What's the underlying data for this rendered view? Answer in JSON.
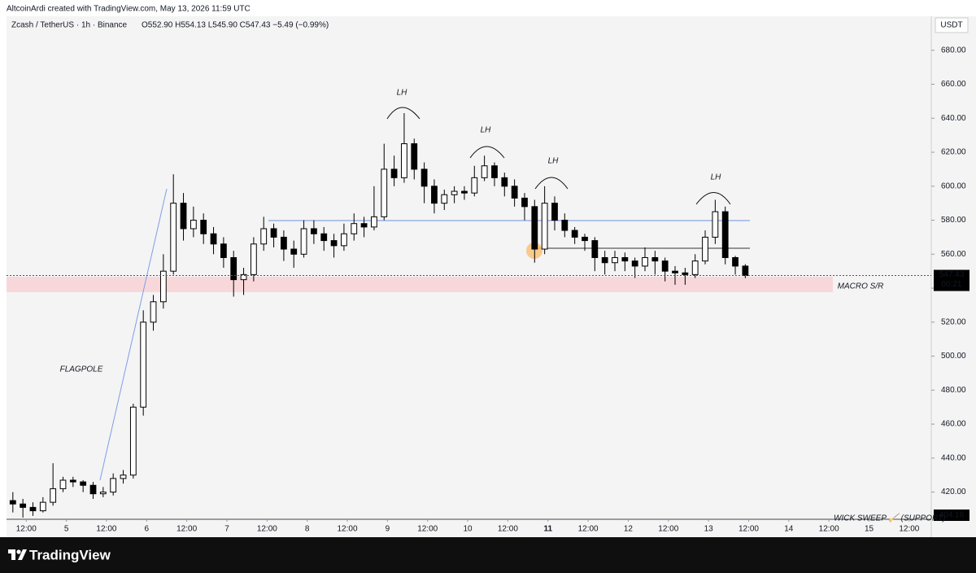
{
  "header": {
    "credit": "AltcoinArdi created with TradingView.com, May 13, 2026 11:59 UTC"
  },
  "chart_data": {
    "type": "candlestick",
    "symbol": "Zcash / TetherUS · 1h · Binance",
    "ohlc_summary": "O552.90 H554.13 L545.90 C547.43 −5.49 (−0.99%)",
    "currency": "USDT",
    "x": [
      8,
      11,
      14,
      17,
      20,
      23,
      26,
      29,
      32,
      35,
      38,
      41,
      44,
      47,
      50,
      53,
      56,
      59,
      62,
      65,
      68,
      71,
      74,
      77,
      80,
      83,
      86,
      89,
      92,
      95,
      98,
      101,
      104,
      107,
      110,
      113,
      116,
      119,
      122,
      125,
      128,
      131,
      134,
      137,
      140,
      143,
      146,
      149,
      152,
      155,
      158,
      161,
      164,
      167,
      170,
      173,
      176,
      179,
      182,
      185,
      188,
      191,
      194,
      197,
      200,
      203,
      206,
      209,
      212,
      215,
      218,
      221,
      224,
      227
    ],
    "open": [
      415,
      413,
      411,
      409,
      414,
      422,
      427,
      426,
      424,
      419,
      420,
      428,
      430,
      470,
      520,
      532,
      550,
      590,
      575,
      580,
      572,
      566,
      558,
      545,
      548,
      566,
      575,
      570,
      563,
      560,
      575,
      572,
      568,
      565,
      572,
      578,
      576,
      582,
      610,
      605,
      625,
      610,
      600,
      590,
      595,
      597,
      596,
      605,
      612,
      605,
      600,
      593,
      588,
      563,
      590,
      580,
      574,
      570,
      568,
      558,
      555,
      558,
      556,
      553,
      558,
      556,
      550,
      549,
      548,
      556,
      570,
      585,
      558,
      553
    ],
    "high": [
      420,
      416,
      414,
      417,
      437,
      429,
      429,
      427,
      426,
      423,
      431,
      433,
      472,
      527,
      536,
      560,
      607,
      596,
      588,
      584,
      576,
      570,
      562,
      552,
      570,
      582,
      578,
      574,
      568,
      580,
      580,
      576,
      572,
      578,
      584,
      582,
      600,
      625,
      618,
      643,
      628,
      614,
      604,
      598,
      600,
      600,
      612,
      618,
      614,
      608,
      604,
      596,
      592,
      600,
      594,
      584,
      576,
      572,
      570,
      562,
      562,
      561,
      558,
      564,
      562,
      558,
      553,
      552,
      560,
      574,
      592,
      588,
      559,
      554.13
    ],
    "low": [
      408,
      405,
      406,
      408,
      412,
      420,
      423,
      420,
      416,
      417,
      418,
      425,
      428,
      465,
      515,
      528,
      548,
      568,
      570,
      566,
      560,
      552,
      535,
      536,
      544,
      562,
      564,
      556,
      552,
      558,
      566,
      562,
      558,
      562,
      568,
      570,
      574,
      580,
      600,
      602,
      604,
      590,
      584,
      586,
      590,
      592,
      594,
      603,
      600,
      594,
      588,
      580,
      555,
      560,
      574,
      570,
      566,
      562,
      550,
      548,
      550,
      550,
      546,
      550,
      548,
      544,
      542,
      542,
      546,
      554,
      566,
      554,
      548,
      545.9
    ],
    "close": [
      413,
      411,
      409,
      414,
      422,
      427,
      426,
      424,
      419,
      420,
      428,
      430,
      470,
      520,
      532,
      550,
      590,
      575,
      580,
      572,
      566,
      558,
      545,
      548,
      566,
      575,
      570,
      563,
      560,
      575,
      572,
      568,
      565,
      572,
      578,
      576,
      582,
      610,
      605,
      625,
      610,
      600,
      590,
      595,
      597,
      596,
      605,
      612,
      605,
      600,
      593,
      588,
      563,
      590,
      580,
      574,
      570,
      568,
      558,
      555,
      558,
      556,
      553,
      558,
      556,
      550,
      549,
      548,
      556,
      570,
      585,
      558,
      553,
      547.43
    ],
    "up_color": "#ffffff",
    "down_color": "#000000",
    "xlim": [
      6.1,
      282.6
    ],
    "xticks": [
      {
        "value": 12,
        "label": "12:00"
      },
      {
        "value": 24,
        "label": "5"
      },
      {
        "value": 36,
        "label": "12:00"
      },
      {
        "value": 48,
        "label": "6"
      },
      {
        "value": 60,
        "label": "12:00"
      },
      {
        "value": 72,
        "label": "7"
      },
      {
        "value": 84,
        "label": "12:00"
      },
      {
        "value": 96,
        "label": "8"
      },
      {
        "value": 108,
        "label": "12:00"
      },
      {
        "value": 120,
        "label": "9"
      },
      {
        "value": 132,
        "label": "12:00"
      },
      {
        "value": 144,
        "label": "10"
      },
      {
        "value": 156,
        "label": "12:00"
      },
      {
        "value": 168,
        "label": "11"
      },
      {
        "value": 180,
        "label": "12:00"
      },
      {
        "value": 192,
        "label": "12"
      },
      {
        "value": 204,
        "label": "12:00"
      },
      {
        "value": 216,
        "label": "13"
      },
      {
        "value": 228,
        "label": "12:00"
      },
      {
        "value": 240,
        "label": "14"
      },
      {
        "value": 252,
        "label": "12:00"
      },
      {
        "value": 264,
        "label": "15"
      },
      {
        "value": 276,
        "label": "12:00"
      }
    ],
    "ylim": [
      404,
      700
    ],
    "yticks": [
      {
        "value": 420,
        "label": "420.00"
      },
      {
        "value": 440,
        "label": "440.00"
      },
      {
        "value": 460,
        "label": "460.00"
      },
      {
        "value": 480,
        "label": "480.00"
      },
      {
        "value": 500,
        "label": "500.00"
      },
      {
        "value": 520,
        "label": "520.00"
      },
      {
        "value": 540,
        "label": "540.00"
      },
      {
        "value": 560,
        "label": "560.00"
      },
      {
        "value": 580,
        "label": "580.00"
      },
      {
        "value": 600,
        "label": "600.00"
      },
      {
        "value": 620,
        "label": "620.00"
      },
      {
        "value": 640,
        "label": "640.00"
      },
      {
        "value": 660,
        "label": "660.00"
      },
      {
        "value": 680,
        "label": "680.00"
      }
    ],
    "countdown": "00:21",
    "price_tags": [
      "404.16"
    ],
    "annotations": [
      "LH",
      "LH",
      "LH",
      "LH",
      "FLAGPOLE",
      "MACRO S/R",
      "WICK SWEEP 🧹 (SUPPORT)"
    ]
  },
  "footer": {
    "logo": "TradingView"
  }
}
